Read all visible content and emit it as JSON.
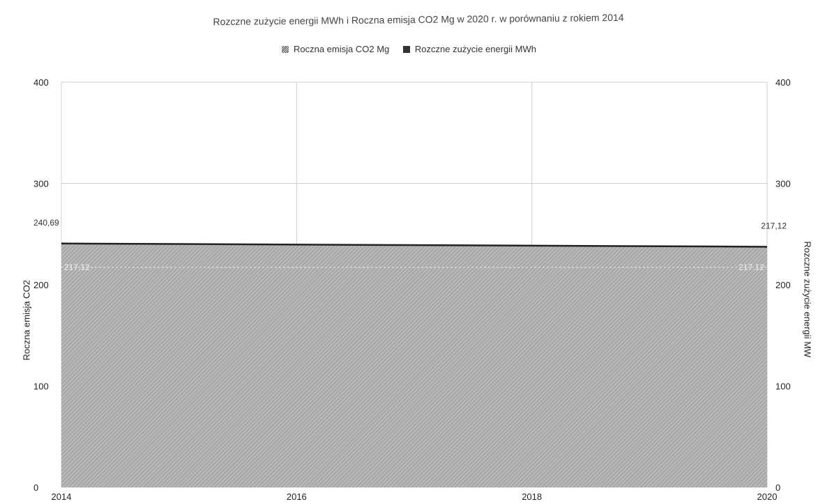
{
  "chart_data": {
    "type": "area",
    "title": "Rozczne zużycie energii MWh i Roczna emisja CO2 Mg w 2020 r. w porównaniu z rokiem 2014",
    "legend": {
      "placement": "top-center",
      "items": [
        "Roczna emisja CO2 Mg",
        "Rozczne zużycie energii MWh"
      ]
    },
    "x": [
      2014,
      2020
    ],
    "x_ticks": [
      "2014",
      "2016",
      "2018",
      "2020"
    ],
    "xlim": [
      2014,
      2020
    ],
    "y_left": {
      "label": "Roczna emisja CO2",
      "ticks": [
        "0",
        "100",
        "200",
        "300",
        "400"
      ],
      "lim": [
        0,
        400
      ]
    },
    "y_right": {
      "label": "Rozczne zużycie energii MW",
      "ticks": [
        "0",
        "100",
        "200",
        "300",
        "400"
      ],
      "lim": [
        0,
        400
      ]
    },
    "series": [
      {
        "name": "Roczna emisja CO2 Mg",
        "axis": "left",
        "values": [
          240.69,
          237.5
        ],
        "labels": [
          "240,69",
          ""
        ]
      },
      {
        "name": "Rozczne zużycie energii MWh",
        "axis": "right",
        "values": [
          217.12,
          217.12
        ],
        "labels": [
          "217,12",
          "217,12"
        ]
      }
    ],
    "grid": true,
    "colors": {
      "emission_fill": "#9a9a9a",
      "energy_line": "#222222",
      "grid": "#cfcfcf"
    }
  }
}
